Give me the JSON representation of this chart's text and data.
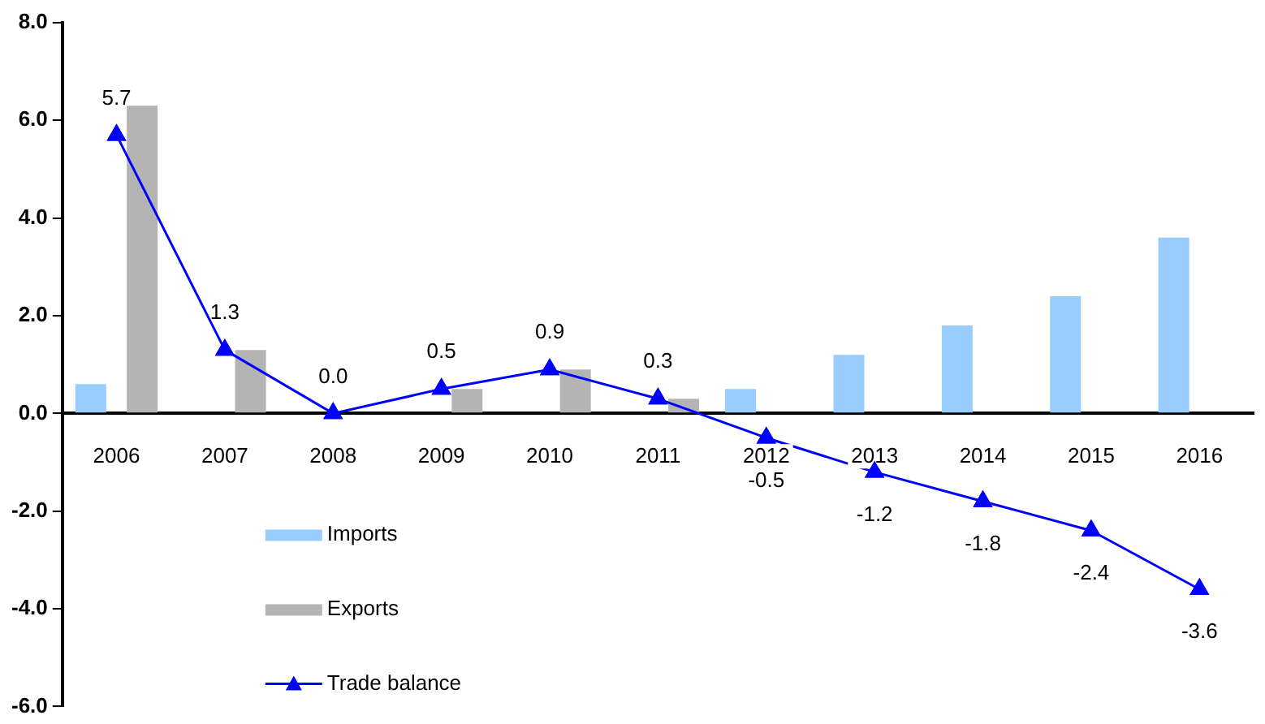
{
  "chart_data": {
    "type": "bar",
    "categories": [
      "2006",
      "2007",
      "2008",
      "2009",
      "2010",
      "2011",
      "2012",
      "2013",
      "2014",
      "2015",
      "2016"
    ],
    "series": [
      {
        "name": "Imports",
        "color": "#99ccff",
        "values": [
          0.6,
          null,
          null,
          null,
          null,
          null,
          0.5,
          1.2,
          1.8,
          2.4,
          3.6
        ]
      },
      {
        "name": "Exports",
        "color": "#b4b4b4",
        "values": [
          6.3,
          1.3,
          0.0,
          0.5,
          0.9,
          0.3,
          null,
          null,
          null,
          null,
          null
        ]
      },
      {
        "name": "Trade balance",
        "type": "line",
        "color": "#0000ff",
        "marker": "triangle",
        "values": [
          5.7,
          1.3,
          0.0,
          0.5,
          0.9,
          0.3,
          -0.5,
          -1.2,
          -1.8,
          -2.4,
          -3.6
        ],
        "value_labels": [
          "5.7",
          "1.3",
          "0.0",
          "0.5",
          "0.9",
          "0.3",
          "-0.5",
          "-1.2",
          "-1.8",
          "-2.4",
          "-3.6"
        ]
      }
    ],
    "ylim": [
      -6,
      8
    ],
    "yticks": [
      {
        "value": -6,
        "label": "-6.0"
      },
      {
        "value": -4,
        "label": "-4.0"
      },
      {
        "value": -2,
        "label": "-2.0"
      },
      {
        "value": 0,
        "label": "0.0"
      },
      {
        "value": 2,
        "label": "2.0"
      },
      {
        "value": 4,
        "label": "4.0"
      },
      {
        "value": 6,
        "label": "6.0"
      },
      {
        "value": 8,
        "label": "8.0"
      }
    ],
    "grid": false,
    "legend": "bottom left"
  }
}
